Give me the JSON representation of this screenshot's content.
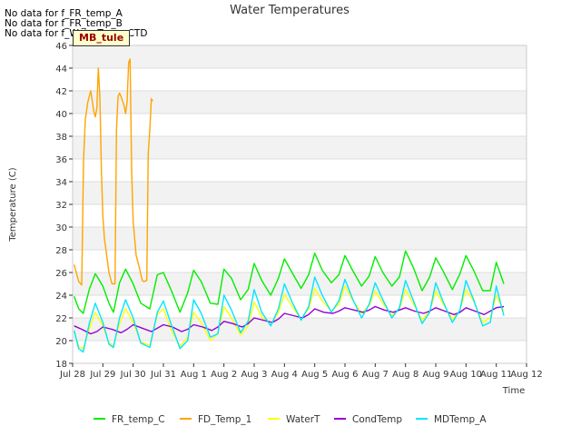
{
  "notices": [
    "No data for f_FR_temp_A",
    "No data for f_FR_temp_B",
    "No data for f_WaterTemp_CTD"
  ],
  "site_tag": "MB_tule",
  "chart_data": {
    "type": "line",
    "title": "Water Temperatures",
    "xlabel": "Time",
    "ylabel": "Temperature (C)",
    "ylim": [
      18,
      46
    ],
    "yticks": [
      18,
      20,
      22,
      24,
      26,
      28,
      30,
      32,
      34,
      36,
      38,
      40,
      42,
      44,
      46
    ],
    "xlim": [
      0,
      15
    ],
    "xticks": [
      0,
      1,
      2,
      3,
      4,
      5,
      6,
      7,
      8,
      9,
      10,
      11,
      12,
      13,
      14,
      15
    ],
    "xtick_labels": [
      "Jul 28",
      "Jul 29",
      "Jul 30",
      "Jul 31",
      "Aug 1",
      "Aug 2",
      "Aug 3",
      "Aug 4",
      "Aug 5",
      "Aug 6",
      "Aug 7",
      "Aug 8",
      "Aug 9",
      "Aug 10",
      "Aug 11",
      "Aug 12"
    ],
    "x_unit": "days since Jul 28",
    "grid": true,
    "legend_position": "bottom",
    "series": [
      {
        "name": "FR_temp_C",
        "color": "#00ee00",
        "x": [
          0.05,
          0.2,
          0.35,
          0.55,
          0.75,
          1.0,
          1.2,
          1.35,
          1.55,
          1.75,
          2.0,
          2.25,
          2.55,
          2.8,
          3.0,
          3.25,
          3.55,
          3.8,
          4.0,
          4.25,
          4.55,
          4.8,
          5.0,
          5.25,
          5.55,
          5.8,
          6.0,
          6.25,
          6.55,
          6.8,
          7.0,
          7.25,
          7.55,
          7.8,
          8.0,
          8.25,
          8.55,
          8.8,
          9.0,
          9.25,
          9.55,
          9.8,
          10.0,
          10.25,
          10.55,
          10.8,
          11.0,
          11.25,
          11.55,
          11.8,
          12.0,
          12.25,
          12.55,
          12.8,
          13.0,
          13.25,
          13.55,
          13.8,
          14.0,
          14.25
        ],
        "y": [
          23.9,
          22.8,
          22.4,
          24.5,
          25.9,
          24.8,
          23.3,
          22.5,
          25.1,
          26.3,
          25.0,
          23.3,
          22.8,
          25.8,
          26.0,
          24.5,
          22.5,
          24.2,
          26.2,
          25.2,
          23.3,
          23.2,
          26.3,
          25.5,
          23.6,
          24.5,
          26.8,
          25.3,
          24.0,
          25.5,
          27.2,
          26.0,
          24.6,
          25.8,
          27.7,
          26.2,
          25.1,
          25.8,
          27.5,
          26.2,
          24.8,
          25.7,
          27.4,
          26.0,
          24.8,
          25.6,
          27.9,
          26.5,
          24.4,
          25.6,
          27.3,
          26.1,
          24.5,
          25.9,
          27.5,
          26.2,
          24.4,
          24.4,
          26.9,
          25.0
        ]
      },
      {
        "name": "FD_Temp_1",
        "color": "#ffa500",
        "x": [
          0.05,
          0.2,
          0.3,
          0.36,
          0.42,
          0.5,
          0.55,
          0.6,
          0.7,
          0.75,
          0.8,
          0.85,
          0.9,
          0.95,
          1.0,
          1.05,
          1.1,
          1.2,
          1.3,
          1.4,
          1.45,
          1.5,
          1.55,
          1.6,
          1.7,
          1.75,
          1.8,
          1.85,
          1.9,
          1.95,
          2.0,
          2.05,
          2.1,
          2.2,
          2.3,
          2.35,
          2.45,
          2.5,
          2.55,
          2.6,
          2.65
        ],
        "y": [
          26.7,
          25.2,
          24.9,
          35.8,
          39.5,
          41.0,
          41.5,
          42.0,
          40.2,
          39.7,
          40.5,
          44.0,
          41.5,
          35.0,
          31.0,
          29.0,
          28.0,
          26.0,
          25.0,
          25.0,
          38.5,
          41.5,
          41.8,
          41.5,
          40.7,
          40.0,
          41.0,
          44.5,
          44.8,
          35.0,
          30.5,
          29.0,
          27.5,
          26.5,
          25.3,
          25.2,
          25.3,
          36.5,
          38.5,
          41.3,
          41.1
        ]
      },
      {
        "name": "WaterT",
        "color": "#ffff00",
        "x": [
          0.05,
          0.2,
          0.35,
          0.55,
          0.75,
          1.0,
          1.2,
          1.35,
          1.55,
          1.75,
          2.0,
          2.25,
          2.55,
          2.8,
          3.0,
          3.25,
          3.55,
          3.8,
          4.0,
          4.25,
          4.55,
          4.8,
          5.0,
          5.25,
          5.55,
          5.8,
          6.0,
          6.25,
          6.55,
          6.8,
          7.0,
          7.25,
          7.55,
          7.8,
          8.0,
          8.25,
          8.55,
          8.8,
          9.0,
          9.25,
          9.55,
          9.8,
          10.0,
          10.25,
          10.55,
          10.8,
          11.0,
          11.25,
          11.55,
          11.8,
          12.0,
          12.25,
          12.55,
          12.8,
          13.0,
          13.25,
          13.55,
          13.8,
          14.0,
          14.25
        ],
        "y": [
          20.8,
          19.5,
          19.3,
          21.0,
          22.5,
          21.3,
          19.8,
          19.6,
          21.5,
          22.8,
          21.6,
          19.9,
          19.6,
          22.3,
          22.8,
          21.0,
          19.5,
          20.3,
          22.5,
          21.6,
          20.0,
          20.6,
          23.0,
          22.0,
          20.5,
          21.3,
          23.4,
          22.1,
          21.4,
          22.5,
          24.1,
          23.0,
          21.9,
          22.8,
          24.6,
          23.5,
          22.6,
          23.2,
          24.8,
          23.6,
          22.4,
          23.1,
          24.4,
          23.3,
          22.2,
          22.8,
          24.5,
          23.3,
          21.8,
          22.6,
          24.4,
          23.2,
          21.9,
          22.7,
          24.5,
          23.5,
          21.6,
          22.0,
          24.0,
          22.6
        ]
      },
      {
        "name": "CondTemp",
        "color": "#9400d3",
        "x": [
          0.05,
          0.3,
          0.6,
          0.8,
          1.0,
          1.3,
          1.6,
          1.8,
          2.0,
          2.3,
          2.6,
          2.8,
          3.0,
          3.3,
          3.6,
          3.8,
          4.0,
          4.3,
          4.6,
          4.8,
          5.0,
          5.3,
          5.6,
          5.8,
          6.0,
          6.3,
          6.6,
          6.8,
          7.0,
          7.3,
          7.6,
          7.8,
          8.0,
          8.3,
          8.6,
          8.8,
          9.0,
          9.3,
          9.6,
          9.8,
          10.0,
          10.3,
          10.6,
          10.8,
          11.0,
          11.3,
          11.6,
          11.8,
          12.0,
          12.3,
          12.6,
          12.8,
          13.0,
          13.3,
          13.6,
          13.8,
          14.0,
          14.25
        ],
        "y": [
          21.3,
          21.0,
          20.6,
          20.8,
          21.2,
          21.0,
          20.7,
          21.0,
          21.4,
          21.1,
          20.8,
          21.1,
          21.4,
          21.2,
          20.8,
          21.0,
          21.4,
          21.2,
          20.9,
          21.2,
          21.7,
          21.5,
          21.2,
          21.5,
          22.0,
          21.8,
          21.6,
          21.9,
          22.4,
          22.2,
          22.0,
          22.3,
          22.8,
          22.5,
          22.4,
          22.6,
          22.9,
          22.7,
          22.5,
          22.7,
          23.0,
          22.7,
          22.5,
          22.7,
          22.9,
          22.6,
          22.4,
          22.6,
          22.9,
          22.6,
          22.3,
          22.5,
          22.9,
          22.6,
          22.3,
          22.6,
          22.9,
          23.0
        ]
      },
      {
        "name": "MDTemp_A",
        "color": "#00e5ff",
        "x": [
          0.05,
          0.2,
          0.35,
          0.55,
          0.75,
          1.0,
          1.2,
          1.35,
          1.55,
          1.75,
          2.0,
          2.25,
          2.55,
          2.8,
          3.0,
          3.25,
          3.55,
          3.8,
          4.0,
          4.25,
          4.55,
          4.8,
          5.0,
          5.25,
          5.55,
          5.8,
          6.0,
          6.25,
          6.55,
          6.8,
          7.0,
          7.25,
          7.55,
          7.8,
          8.0,
          8.25,
          8.55,
          8.8,
          9.0,
          9.25,
          9.55,
          9.8,
          10.0,
          10.25,
          10.55,
          10.8,
          11.0,
          11.25,
          11.55,
          11.8,
          12.0,
          12.25,
          12.55,
          12.8,
          13.0,
          13.25,
          13.55,
          13.8,
          14.0,
          14.25
        ],
        "y": [
          20.9,
          19.3,
          19.0,
          21.5,
          23.3,
          21.6,
          19.7,
          19.4,
          22.0,
          23.6,
          22.0,
          19.8,
          19.4,
          22.5,
          23.5,
          21.5,
          19.3,
          20.0,
          23.6,
          22.4,
          20.3,
          20.6,
          24.0,
          22.7,
          20.7,
          21.7,
          24.5,
          22.5,
          21.3,
          22.8,
          25.0,
          23.4,
          21.8,
          23.0,
          25.6,
          24.0,
          22.5,
          23.5,
          25.4,
          23.7,
          22.0,
          23.2,
          25.1,
          23.6,
          22.0,
          22.9,
          25.3,
          23.6,
          21.5,
          22.5,
          25.1,
          23.4,
          21.6,
          22.7,
          25.3,
          23.6,
          21.3,
          21.6,
          24.8,
          22.2
        ]
      }
    ]
  }
}
